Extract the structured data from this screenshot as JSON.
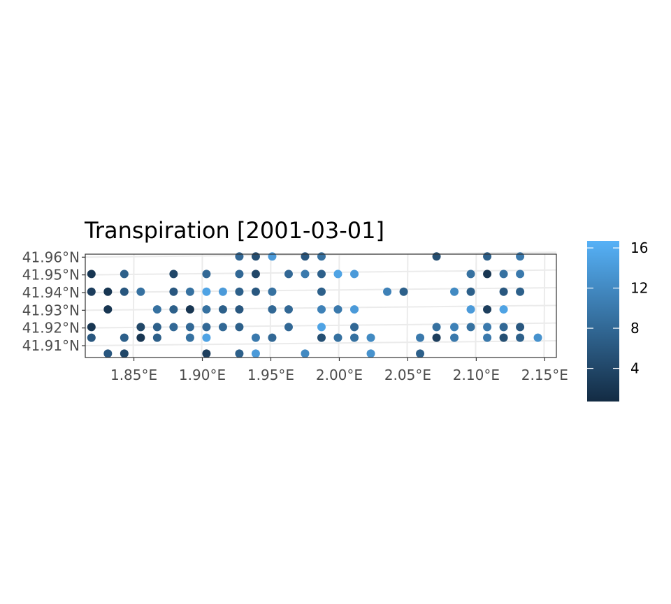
{
  "chart_data": {
    "type": "scatter",
    "title": "Transpiration [2001-03-01]",
    "xlabel": "",
    "ylabel": "",
    "x_ticks": [
      {
        "value": 1.85,
        "label": "1.85°E"
      },
      {
        "value": 1.9,
        "label": "1.90°E"
      },
      {
        "value": 1.95,
        "label": "1.95°E"
      },
      {
        "value": 2.0,
        "label": "2.00°E"
      },
      {
        "value": 2.05,
        "label": "2.05°E"
      },
      {
        "value": 2.1,
        "label": "2.10°E"
      },
      {
        "value": 2.15,
        "label": "2.15°E"
      }
    ],
    "y_ticks": [
      {
        "value": 41.91,
        "label": "41.91°N"
      },
      {
        "value": 41.92,
        "label": "41.92°N"
      },
      {
        "value": 41.93,
        "label": "41.93°N"
      },
      {
        "value": 41.94,
        "label": "41.94°N"
      },
      {
        "value": 41.95,
        "label": "41.95°N"
      },
      {
        "value": 41.96,
        "label": "41.96°N"
      }
    ],
    "xlim": [
      1.8145,
      2.1585
    ],
    "ylim": [
      41.9033,
      41.9617
    ],
    "grid": true,
    "colorbar": {
      "range": [
        0.7,
        16.7
      ],
      "ticks": [
        4,
        8,
        12,
        16
      ],
      "low_color": "#132b43",
      "high_color": "#56b1f7",
      "placement": "right"
    },
    "points": [
      {
        "x": 1.927,
        "y": 41.9604,
        "v": 8
      },
      {
        "x": 1.939,
        "y": 41.9604,
        "v": 5
      },
      {
        "x": 1.951,
        "y": 41.9604,
        "v": 14
      },
      {
        "x": 1.975,
        "y": 41.9604,
        "v": 6
      },
      {
        "x": 1.987,
        "y": 41.9604,
        "v": 9
      },
      {
        "x": 2.071,
        "y": 41.9604,
        "v": 5
      },
      {
        "x": 2.108,
        "y": 41.9604,
        "v": 7
      },
      {
        "x": 2.132,
        "y": 41.9604,
        "v": 10
      },
      {
        "x": 1.819,
        "y": 41.9505,
        "v": 2
      },
      {
        "x": 1.843,
        "y": 41.9505,
        "v": 7
      },
      {
        "x": 1.879,
        "y": 41.9505,
        "v": 4
      },
      {
        "x": 1.903,
        "y": 41.9505,
        "v": 8
      },
      {
        "x": 1.927,
        "y": 41.9505,
        "v": 8
      },
      {
        "x": 1.939,
        "y": 41.9505,
        "v": 4
      },
      {
        "x": 1.963,
        "y": 41.9505,
        "v": 8
      },
      {
        "x": 1.975,
        "y": 41.9505,
        "v": 10
      },
      {
        "x": 1.987,
        "y": 41.9505,
        "v": 7
      },
      {
        "x": 1.999,
        "y": 41.9505,
        "v": 15
      },
      {
        "x": 2.011,
        "y": 41.9505,
        "v": 14
      },
      {
        "x": 2.096,
        "y": 41.9505,
        "v": 9
      },
      {
        "x": 2.108,
        "y": 41.9505,
        "v": 2
      },
      {
        "x": 2.12,
        "y": 41.9505,
        "v": 9
      },
      {
        "x": 2.132,
        "y": 41.9505,
        "v": 10
      },
      {
        "x": 1.819,
        "y": 41.9405,
        "v": 3
      },
      {
        "x": 1.831,
        "y": 41.9405,
        "v": 2
      },
      {
        "x": 1.843,
        "y": 41.9405,
        "v": 6
      },
      {
        "x": 1.855,
        "y": 41.9405,
        "v": 9
      },
      {
        "x": 1.879,
        "y": 41.9405,
        "v": 6
      },
      {
        "x": 1.891,
        "y": 41.9405,
        "v": 9
      },
      {
        "x": 1.903,
        "y": 41.9405,
        "v": 15
      },
      {
        "x": 1.915,
        "y": 41.9405,
        "v": 14
      },
      {
        "x": 1.927,
        "y": 41.9405,
        "v": 7
      },
      {
        "x": 1.939,
        "y": 41.9405,
        "v": 6
      },
      {
        "x": 1.951,
        "y": 41.9405,
        "v": 9
      },
      {
        "x": 1.987,
        "y": 41.9405,
        "v": 7
      },
      {
        "x": 2.035,
        "y": 41.9405,
        "v": 11
      },
      {
        "x": 2.047,
        "y": 41.9405,
        "v": 7
      },
      {
        "x": 2.084,
        "y": 41.9405,
        "v": 12
      },
      {
        "x": 2.096,
        "y": 41.9405,
        "v": 7
      },
      {
        "x": 2.12,
        "y": 41.9405,
        "v": 6
      },
      {
        "x": 2.132,
        "y": 41.9405,
        "v": 7
      },
      {
        "x": 1.831,
        "y": 41.9305,
        "v": 2
      },
      {
        "x": 1.867,
        "y": 41.9305,
        "v": 9
      },
      {
        "x": 1.879,
        "y": 41.9305,
        "v": 7
      },
      {
        "x": 1.891,
        "y": 41.9305,
        "v": 2
      },
      {
        "x": 1.903,
        "y": 41.9305,
        "v": 9
      },
      {
        "x": 1.915,
        "y": 41.9305,
        "v": 7
      },
      {
        "x": 1.927,
        "y": 41.9305,
        "v": 6
      },
      {
        "x": 1.951,
        "y": 41.9305,
        "v": 8
      },
      {
        "x": 1.963,
        "y": 41.9305,
        "v": 8
      },
      {
        "x": 1.987,
        "y": 41.9305,
        "v": 11
      },
      {
        "x": 1.999,
        "y": 41.9305,
        "v": 10
      },
      {
        "x": 2.011,
        "y": 41.9305,
        "v": 14
      },
      {
        "x": 2.096,
        "y": 41.9305,
        "v": 14
      },
      {
        "x": 2.108,
        "y": 41.9305,
        "v": 3
      },
      {
        "x": 2.12,
        "y": 41.9305,
        "v": 15
      },
      {
        "x": 1.819,
        "y": 41.9205,
        "v": 2
      },
      {
        "x": 1.855,
        "y": 41.9205,
        "v": 4
      },
      {
        "x": 1.867,
        "y": 41.9205,
        "v": 7
      },
      {
        "x": 1.879,
        "y": 41.9205,
        "v": 8
      },
      {
        "x": 1.891,
        "y": 41.9205,
        "v": 8
      },
      {
        "x": 1.903,
        "y": 41.9205,
        "v": 8
      },
      {
        "x": 1.915,
        "y": 41.9205,
        "v": 8
      },
      {
        "x": 1.927,
        "y": 41.9205,
        "v": 7
      },
      {
        "x": 1.963,
        "y": 41.9205,
        "v": 8
      },
      {
        "x": 1.987,
        "y": 41.9205,
        "v": 15
      },
      {
        "x": 2.011,
        "y": 41.9205,
        "v": 8
      },
      {
        "x": 2.071,
        "y": 41.9205,
        "v": 9
      },
      {
        "x": 2.084,
        "y": 41.9205,
        "v": 11
      },
      {
        "x": 2.096,
        "y": 41.9205,
        "v": 9
      },
      {
        "x": 2.108,
        "y": 41.9205,
        "v": 10
      },
      {
        "x": 2.12,
        "y": 41.9205,
        "v": 8
      },
      {
        "x": 2.132,
        "y": 41.9205,
        "v": 6
      },
      {
        "x": 1.819,
        "y": 41.9145,
        "v": 6
      },
      {
        "x": 1.843,
        "y": 41.9145,
        "v": 7
      },
      {
        "x": 1.855,
        "y": 41.9145,
        "v": 2
      },
      {
        "x": 1.867,
        "y": 41.9145,
        "v": 7
      },
      {
        "x": 1.891,
        "y": 41.9145,
        "v": 9
      },
      {
        "x": 1.903,
        "y": 41.9145,
        "v": 15
      },
      {
        "x": 1.939,
        "y": 41.9145,
        "v": 10
      },
      {
        "x": 1.951,
        "y": 41.9145,
        "v": 8
      },
      {
        "x": 1.987,
        "y": 41.9145,
        "v": 5
      },
      {
        "x": 1.999,
        "y": 41.9145,
        "v": 9
      },
      {
        "x": 2.011,
        "y": 41.9145,
        "v": 9
      },
      {
        "x": 2.023,
        "y": 41.9145,
        "v": 12
      },
      {
        "x": 2.059,
        "y": 41.9145,
        "v": 10
      },
      {
        "x": 2.071,
        "y": 41.9145,
        "v": 3
      },
      {
        "x": 2.084,
        "y": 41.9145,
        "v": 10
      },
      {
        "x": 2.108,
        "y": 41.9145,
        "v": 10
      },
      {
        "x": 2.12,
        "y": 41.9145,
        "v": 5
      },
      {
        "x": 2.132,
        "y": 41.9145,
        "v": 7
      },
      {
        "x": 2.145,
        "y": 41.9145,
        "v": 13
      },
      {
        "x": 1.831,
        "y": 41.9055,
        "v": 6
      },
      {
        "x": 1.843,
        "y": 41.9055,
        "v": 4
      },
      {
        "x": 1.903,
        "y": 41.9055,
        "v": 3
      },
      {
        "x": 1.927,
        "y": 41.9055,
        "v": 7
      },
      {
        "x": 1.939,
        "y": 41.9055,
        "v": 14
      },
      {
        "x": 1.975,
        "y": 41.9055,
        "v": 12
      },
      {
        "x": 2.023,
        "y": 41.9055,
        "v": 13
      },
      {
        "x": 2.059,
        "y": 41.9055,
        "v": 7
      }
    ]
  }
}
